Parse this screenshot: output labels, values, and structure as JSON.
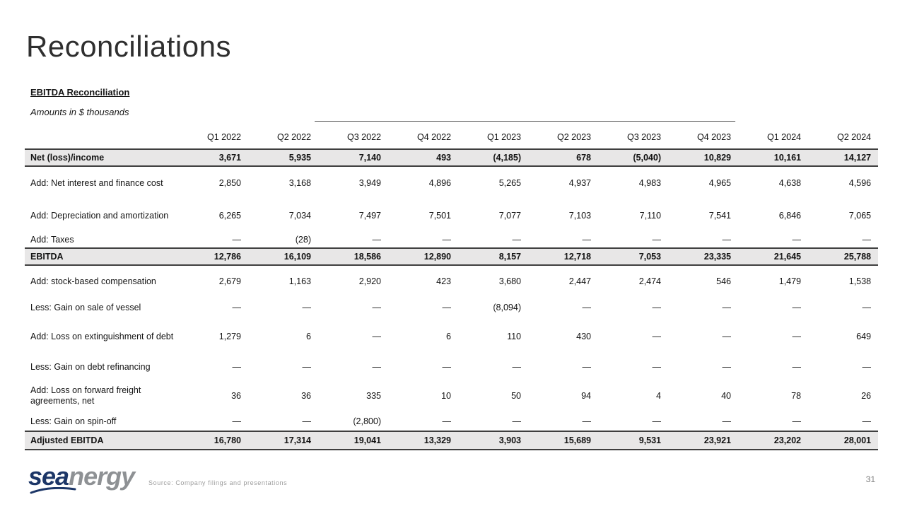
{
  "title": "Reconciliations",
  "table": {
    "heading": "EBITDA Reconciliation",
    "subtitle": "Amounts in $ thousands",
    "columns": [
      "Q1 2022",
      "Q2 2022",
      "Q3 2022",
      "Q4 2022",
      "Q1 2023",
      "Q2 2023",
      "Q3 2023",
      "Q4 2023",
      "Q1 2024",
      "Q2 2024"
    ],
    "rows": [
      {
        "label": "Net (loss)/income",
        "emphasis": true,
        "values": [
          "3,671",
          "5,935",
          "7,140",
          "493",
          "(4,185)",
          "678",
          "(5,040)",
          "10,829",
          "10,161",
          "14,127"
        ]
      },
      {
        "label": "Add: Net interest and finance cost",
        "emphasis": false,
        "values": [
          "2,850",
          "3,168",
          "3,949",
          "4,896",
          "5,265",
          "4,937",
          "4,983",
          "4,965",
          "4,638",
          "4,596"
        ]
      },
      {
        "label": "Add: Depreciation and amortization",
        "emphasis": false,
        "values": [
          "6,265",
          "7,034",
          "7,497",
          "7,501",
          "7,077",
          "7,103",
          "7,110",
          "7,541",
          "6,846",
          "7,065"
        ]
      },
      {
        "label": "Add: Taxes",
        "emphasis": false,
        "values": [
          "—",
          "(28)",
          "—",
          "—",
          "—",
          "—",
          "—",
          "—",
          "—",
          "—"
        ]
      },
      {
        "label": "EBITDA",
        "emphasis": true,
        "values": [
          "12,786",
          "16,109",
          "18,586",
          "12,890",
          "8,157",
          "12,718",
          "7,053",
          "23,335",
          "21,645",
          "25,788"
        ]
      },
      {
        "label": "Add: stock-based compensation",
        "emphasis": false,
        "values": [
          "2,679",
          "1,163",
          "2,920",
          "423",
          "3,680",
          "2,447",
          "2,474",
          "546",
          "1,479",
          "1,538"
        ]
      },
      {
        "label": "Less: Gain on sale of vessel",
        "emphasis": false,
        "values": [
          "—",
          "—",
          "—",
          "—",
          "(8,094)",
          "—",
          "—",
          "—",
          "—",
          "—"
        ]
      },
      {
        "label": "Add: Loss on extinguishment of debt",
        "emphasis": false,
        "values": [
          "1,279",
          "6",
          "—",
          "6",
          "110",
          "430",
          "—",
          "—",
          "—",
          "649"
        ]
      },
      {
        "label": "Less: Gain on debt refinancing",
        "emphasis": false,
        "values": [
          "—",
          "—",
          "—",
          "—",
          "—",
          "—",
          "—",
          "—",
          "—",
          "—"
        ]
      },
      {
        "label": "Add: Loss on forward freight agreements, net",
        "emphasis": false,
        "values": [
          "36",
          "36",
          "335",
          "10",
          "50",
          "94",
          "4",
          "40",
          "78",
          "26"
        ]
      },
      {
        "label": "Less: Gain on spin-off",
        "emphasis": false,
        "values": [
          "—",
          "—",
          "(2,800)",
          "—",
          "—",
          "—",
          "—",
          "—",
          "—",
          "—"
        ]
      },
      {
        "label": "Adjusted EBITDA",
        "emphasis": true,
        "values": [
          "16,780",
          "17,314",
          "19,041",
          "13,329",
          "3,903",
          "15,689",
          "9,531",
          "23,921",
          "23,202",
          "28,001"
        ]
      }
    ]
  },
  "footer": {
    "logo_part1": "sea",
    "logo_part2": "nergy",
    "source": "Source: Company filings and presentations",
    "page_number": "31"
  },
  "colors": {
    "emphasis_row_bg": "#e8e7e7",
    "row_border": "#3f3f3f",
    "logo_navy": "#1c3667",
    "logo_gray": "#8e9194"
  }
}
